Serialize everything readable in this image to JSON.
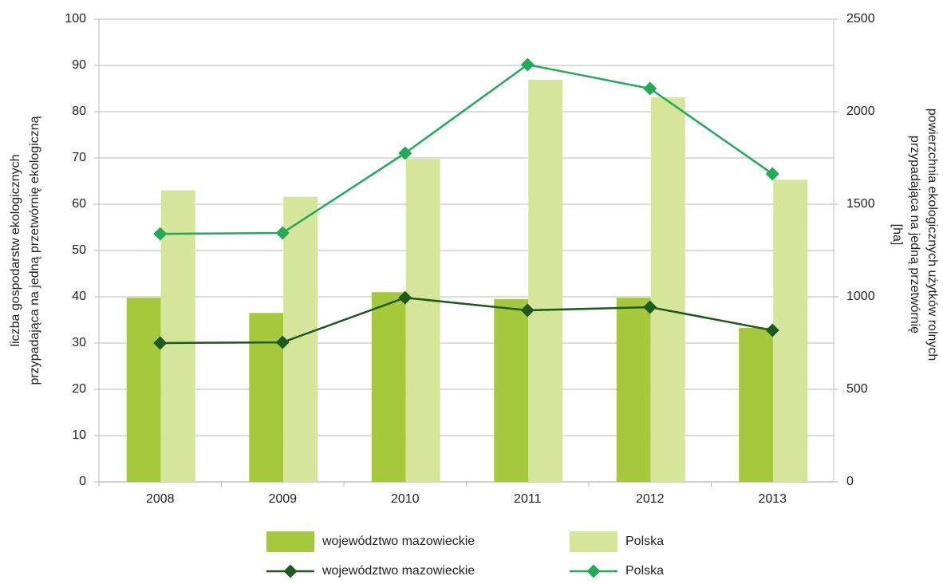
{
  "chart_data": {
    "type": "bar-line",
    "categories": [
      "2008",
      "2009",
      "2010",
      "2011",
      "2012",
      "2013"
    ],
    "series": [
      {
        "name": "województwo mazowieckie",
        "type": "bar",
        "axis": "y",
        "color": "#a5c93a",
        "values": [
          39.8,
          36.5,
          41.0,
          39.5,
          39.8,
          33.3
        ]
      },
      {
        "name": "Polska",
        "type": "bar",
        "axis": "y",
        "color": "#d5e59a",
        "values": [
          63.0,
          61.6,
          69.8,
          86.9,
          83.1,
          65.3
        ]
      },
      {
        "name": "województwo mazowieckie",
        "type": "line",
        "axis": "y2",
        "color": "#1e5a1e",
        "values": [
          750,
          754,
          995,
          927,
          944,
          819
        ]
      },
      {
        "name": "Polska",
        "type": "line",
        "axis": "y2",
        "color": "#1fab57",
        "values": [
          1340,
          1345,
          1776,
          2254,
          2125,
          1664
        ]
      }
    ],
    "ylabel": [
      "liczba gospodarstw ekologicznych",
      "przypadająca na jedną przetwórnię ekologiczną"
    ],
    "y2label": [
      "powierzchnia ekologicznych użytków rolnych",
      "przypadająca na jedną przetwórnię",
      "[ha]"
    ],
    "ylim": [
      0,
      100
    ],
    "yticks": [
      0,
      10,
      20,
      30,
      40,
      50,
      60,
      70,
      80,
      90,
      100
    ],
    "y2lim": [
      0,
      2500
    ],
    "y2ticks": [
      0,
      500,
      1000,
      1500,
      2000,
      2500
    ],
    "grid": true
  }
}
